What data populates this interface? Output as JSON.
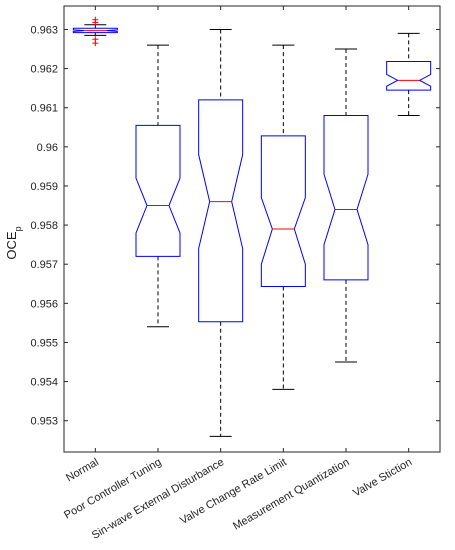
{
  "chart_data": {
    "type": "box",
    "ylabel": "OCE",
    "ylabel_subscript": "p",
    "ylim": [
      0.9522,
      0.9636
    ],
    "yticks": [
      "0.953",
      "0.954",
      "0.955",
      "0.956",
      "0.957",
      "0.958",
      "0.959",
      "0.96",
      "0.961",
      "0.962",
      "0.963"
    ],
    "ytick_values": [
      0.953,
      0.954,
      0.955,
      0.956,
      0.957,
      0.958,
      0.959,
      0.96,
      0.961,
      0.962,
      0.963
    ],
    "categories": [
      "Normal",
      "Poor Controller Tuning",
      "Sin-wave External Disturbance",
      "Valve Change Rate Limit",
      "Measurement Quantization",
      "Valve Stiction"
    ],
    "boxes": [
      {
        "whisker_low": 0.96285,
        "q1": 0.96292,
        "median": 0.96297,
        "q3": 0.96303,
        "whisker_high": 0.96312,
        "notch_low": 0.96295,
        "notch_high": 0.96299,
        "outliers": [
          0.96265,
          0.96275,
          0.96318,
          0.96325
        ]
      },
      {
        "whisker_low": 0.9554,
        "q1": 0.9572,
        "median": 0.9585,
        "q3": 0.96055,
        "whisker_high": 0.9626,
        "notch_low": 0.9578,
        "notch_high": 0.9592,
        "outliers": []
      },
      {
        "whisker_low": 0.9526,
        "q1": 0.95553,
        "median": 0.9586,
        "q3": 0.9612,
        "whisker_high": 0.963,
        "notch_low": 0.9574,
        "notch_high": 0.9598,
        "outliers": []
      },
      {
        "whisker_low": 0.9538,
        "q1": 0.95643,
        "median": 0.9579,
        "q3": 0.96028,
        "whisker_high": 0.9626,
        "notch_low": 0.957,
        "notch_high": 0.9587,
        "outliers": []
      },
      {
        "whisker_low": 0.9545,
        "q1": 0.9566,
        "median": 0.9584,
        "q3": 0.9608,
        "whisker_high": 0.9625,
        "notch_low": 0.9575,
        "notch_high": 0.9593,
        "outliers": []
      },
      {
        "whisker_low": 0.9608,
        "q1": 0.96145,
        "median": 0.9617,
        "q3": 0.96218,
        "whisker_high": 0.9629,
        "notch_low": 0.96155,
        "notch_high": 0.96185,
        "outliers": []
      }
    ],
    "colors": {
      "box": "#0000ff",
      "median": "#ff0000",
      "whisker": "#000000",
      "outlier": "#ff0000",
      "axis": "#262626"
    }
  }
}
